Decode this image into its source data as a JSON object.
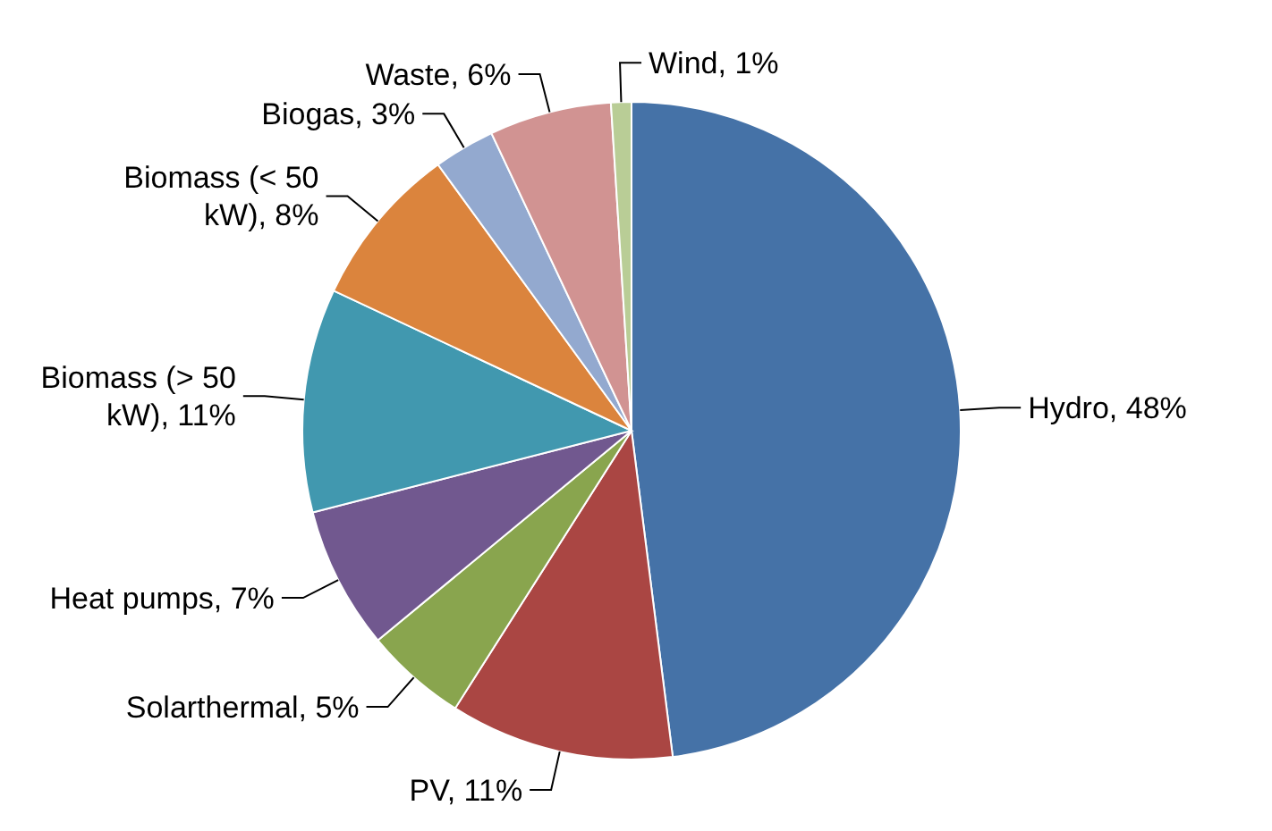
{
  "chart_data": {
    "type": "pie",
    "categories": [
      "Hydro",
      "PV",
      "Solarthermal",
      "Heat pumps",
      "Biomass (> 50 kW)",
      "Biomass (< 50 kW)",
      "Biogas",
      "Waste",
      "Wind"
    ],
    "values": [
      48,
      11,
      5,
      7,
      11,
      8,
      3,
      6,
      1
    ],
    "value_labels": [
      "48%",
      "11%",
      "5%",
      "7%",
      "11%",
      "8%",
      "3%",
      "6%",
      "1%"
    ],
    "colors": [
      "#4572a7",
      "#aa4643",
      "#89a54e",
      "#71588f",
      "#4198af",
      "#db843d",
      "#93a9cf",
      "#d19392",
      "#b9cd96"
    ],
    "legend": false
  }
}
